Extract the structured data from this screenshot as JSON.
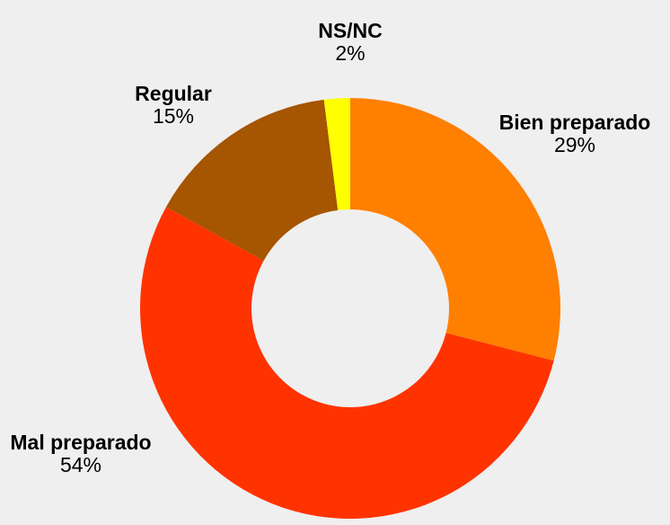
{
  "chart_data": {
    "type": "donut",
    "categories": [
      "Bien preparado",
      "Mal preparado",
      "Regular",
      "NS/NC"
    ],
    "values": [
      29,
      54,
      15,
      2
    ],
    "value_labels": [
      "29%",
      "54%",
      "15%",
      "2%"
    ],
    "colors": [
      "#ff7f00",
      "#ff3300",
      "#a65500",
      "#ffff00"
    ]
  }
}
